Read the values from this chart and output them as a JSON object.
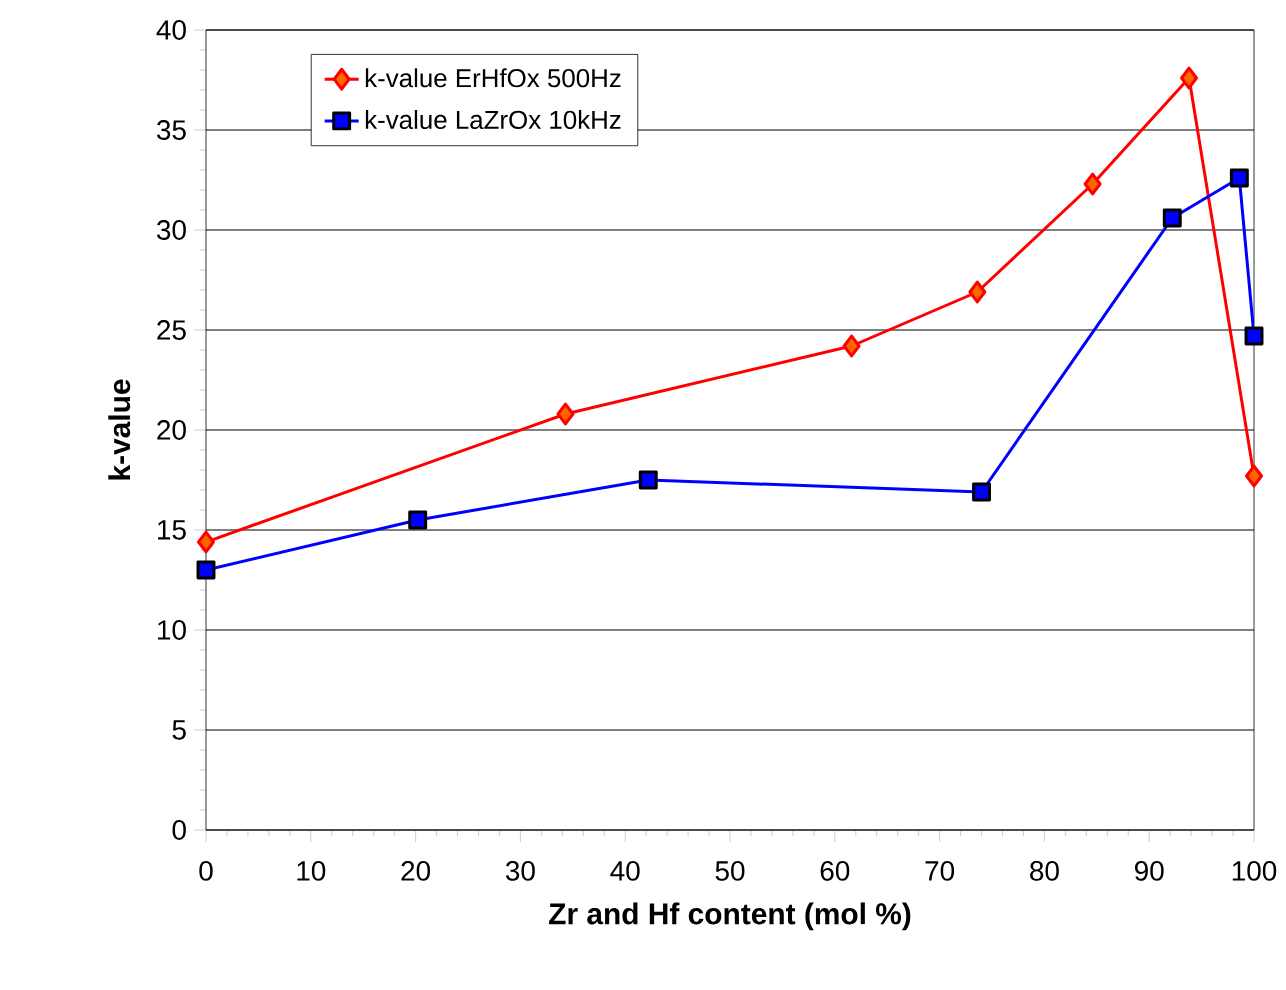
{
  "chart_data": {
    "type": "line",
    "xlabel": "Zr and Hf content (mol %)",
    "ylabel": "k-value",
    "xlim": [
      0,
      100
    ],
    "xticks": [
      0,
      10,
      20,
      30,
      40,
      50,
      60,
      70,
      80,
      90,
      100
    ],
    "ylim": [
      0,
      40
    ],
    "yticks": [
      0,
      5,
      10,
      15,
      20,
      25,
      30,
      35,
      40
    ],
    "grid": "y",
    "legend": "top left",
    "series": [
      {
        "name": "k-value ErHfOx 500Hz",
        "color": "#ff0000",
        "marker": "diamond",
        "x": [
          0,
          34.3,
          61.6,
          73.6,
          84.6,
          93.8,
          100
        ],
        "values": [
          14.4,
          20.8,
          24.2,
          26.9,
          32.3,
          37.6,
          17.7
        ]
      },
      {
        "name": "k-value LaZrOx 10kHz",
        "color": "#0000ff",
        "marker": "square",
        "x": [
          0,
          20.2,
          42.2,
          74.0,
          92.2,
          98.6,
          100
        ],
        "values": [
          13.0,
          15.5,
          17.5,
          16.9,
          30.6,
          32.6,
          24.7
        ]
      }
    ]
  }
}
